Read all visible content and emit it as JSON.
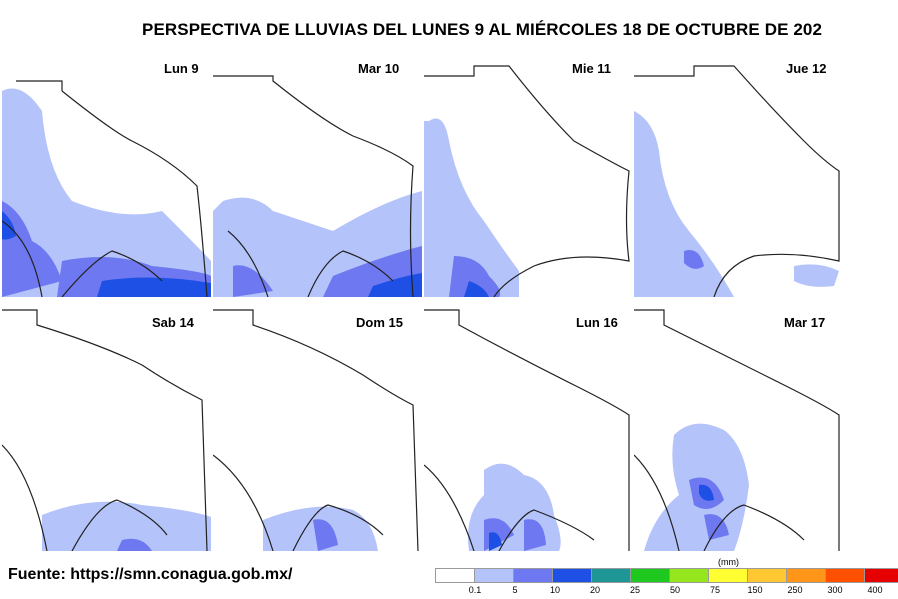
{
  "title": "PERSPECTIVA DE LLUVIAS DEL LUNES 9 AL MIÉRCOLES 18 DE OCTUBRE DE 202",
  "panels": [
    {
      "label": "Lun 9"
    },
    {
      "label": "Mar 10"
    },
    {
      "label": "Mie 11"
    },
    {
      "label": "Jue 12"
    },
    {
      "label": "Sab 14"
    },
    {
      "label": "Dom 15"
    },
    {
      "label": "Lun 16"
    },
    {
      "label": "Mar 17"
    }
  ],
  "source": "Fuente: https://smn.conagua.gob.mx/",
  "legend": {
    "unit": "(mm)",
    "ticks": [
      "0.1",
      "5",
      "10",
      "20",
      "25",
      "50",
      "75",
      "150",
      "250",
      "300",
      "400"
    ],
    "colors": [
      "#ffffff",
      "#b4c3fa",
      "#6e78f0",
      "#1e50e6",
      "#1e9696",
      "#1ec81e",
      "#96e61e",
      "#ffff32",
      "#ffc832",
      "#ff9619",
      "#ff5000",
      "#e60000"
    ]
  }
}
